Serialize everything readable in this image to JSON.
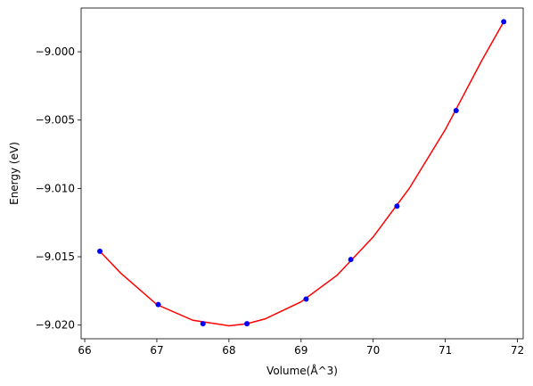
{
  "chart_data": {
    "type": "scatter",
    "title": "",
    "xlabel": "Volume(Å^3)",
    "ylabel": "Energy (eV)",
    "xlim": [
      65.95,
      72.08
    ],
    "ylim": [
      -9.021,
      -8.9968
    ],
    "xticks": [
      66,
      67,
      68,
      69,
      70,
      71,
      72
    ],
    "xtick_labels": [
      "66",
      "67",
      "68",
      "69",
      "70",
      "71",
      "72"
    ],
    "yticks": [
      -9.02,
      -9.015,
      -9.01,
      -9.005,
      -9.0
    ],
    "ytick_labels": [
      "−9.020",
      "−9.015",
      "−9.010",
      "−9.005",
      "−9.000"
    ],
    "grid": false,
    "series": [
      {
        "kind": "points",
        "color": "#0000ff",
        "x": [
          66.21,
          67.02,
          67.64,
          68.25,
          69.07,
          69.69,
          70.33,
          71.15,
          71.81
        ],
        "y": [
          -9.0146,
          -9.0185,
          -9.0199,
          -9.0199,
          -9.0181,
          -9.0152,
          -9.0113,
          -9.0043,
          -8.9978
        ]
      },
      {
        "kind": "fit-line",
        "color": "#ff0000",
        "x": [
          66.21,
          66.5,
          67.0,
          67.5,
          68.0,
          68.25,
          68.5,
          69.0,
          69.5,
          70.0,
          70.5,
          71.0,
          71.5,
          71.81
        ],
        "y": [
          -9.0146,
          -9.0162,
          -9.0185,
          -9.01965,
          -9.02005,
          -9.0199,
          -9.01955,
          -9.0183,
          -9.01635,
          -9.01355,
          -9.01,
          -9.0057,
          -9.0007,
          -8.9978
        ]
      }
    ]
  }
}
